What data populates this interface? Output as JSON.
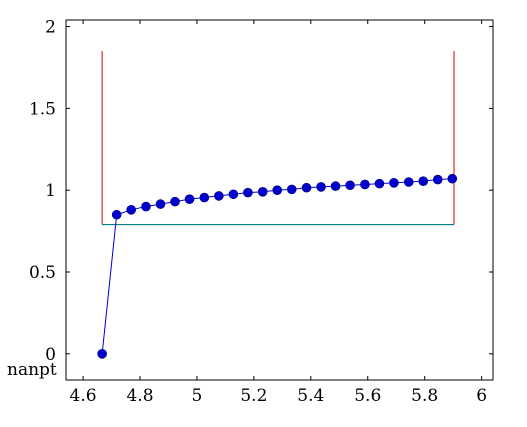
{
  "chart_data": {
    "type": "line",
    "title": "",
    "xlabel": "",
    "ylabel": "",
    "xlim": [
      4.54,
      6.04
    ],
    "ylim": [
      -0.16,
      2.04
    ],
    "x_ticks": [
      4.6,
      4.8,
      5,
      5.2,
      5.4,
      5.6,
      5.8,
      6
    ],
    "x_tick_labels": [
      "4.6",
      "4.8",
      "5",
      "5.2",
      "5.4",
      "5.6",
      "5.8",
      "6"
    ],
    "y_ticks": [
      0,
      0.5,
      1,
      1.5,
      2
    ],
    "y_tick_labels": [
      "0",
      "0.5",
      "1",
      "1.5",
      "2"
    ],
    "extra_label": "nanpt",
    "grid": false,
    "legend": "none",
    "series": [
      {
        "color": "#0000cc",
        "marker": "circle",
        "x": [
          4.667,
          4.718,
          4.769,
          4.821,
          4.872,
          4.923,
          4.974,
          5.026,
          5.077,
          5.128,
          5.179,
          5.231,
          5.282,
          5.333,
          5.385,
          5.436,
          5.487,
          5.538,
          5.59,
          5.641,
          5.692,
          5.744,
          5.795,
          5.846,
          5.897
        ],
        "y": [
          0.0,
          0.85,
          0.88,
          0.9,
          0.915,
          0.93,
          0.945,
          0.955,
          0.965,
          0.975,
          0.985,
          0.99,
          1.0,
          1.005,
          1.015,
          1.02,
          1.025,
          1.03,
          1.035,
          1.04,
          1.045,
          1.05,
          1.055,
          1.065,
          1.07
        ]
      }
    ],
    "bracket": {
      "color_vertical": "#e00000",
      "color_horizontal": "#008080",
      "x_left": 4.667,
      "x_right": 5.903,
      "y_bottom": 0.79,
      "y_top": 1.85
    }
  }
}
